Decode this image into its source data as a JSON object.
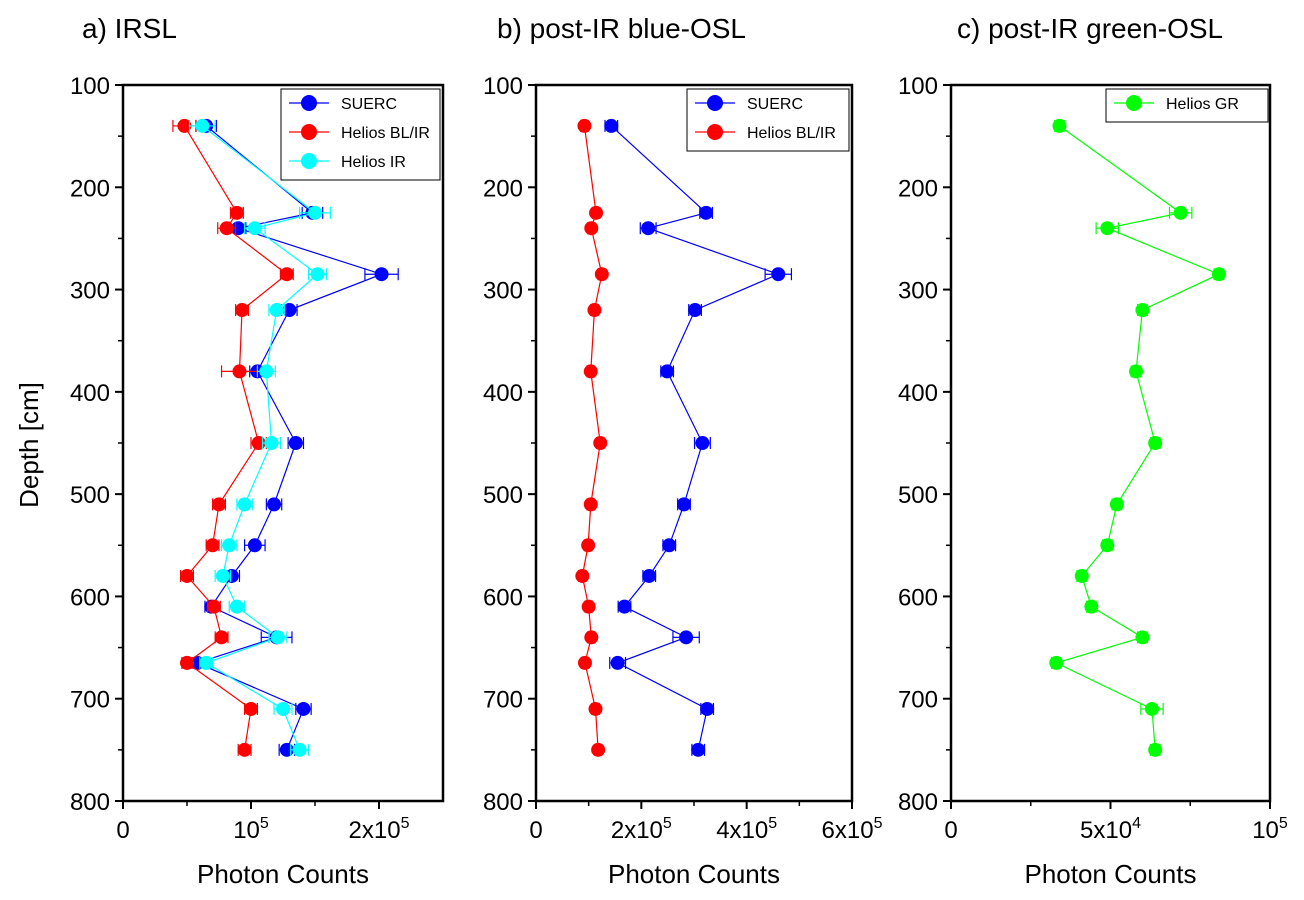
{
  "panels_common": {
    "ylabel": "Depth [cm]",
    "xlabel": "Photon Counts"
  },
  "chart_data": [
    {
      "type": "line",
      "title": "a) IRSL",
      "xlabel": "Photon Counts",
      "ylabel": "Depth [cm]",
      "ylim": [
        800,
        100
      ],
      "y_reversed": true,
      "xlim": [
        0,
        250000
      ],
      "x_ticks": [
        {
          "value": 0,
          "label": "0"
        },
        {
          "value": 100000,
          "label": "10^5"
        },
        {
          "value": 200000,
          "label": "2x10^5"
        }
      ],
      "y_ticks": [
        100,
        200,
        300,
        400,
        500,
        600,
        700,
        800
      ],
      "grid": false,
      "legend_position": "top-right",
      "series": [
        {
          "name": "SUERC",
          "color": "#0000ff",
          "depth": [
            140,
            225,
            240,
            285,
            320,
            380,
            450,
            510,
            550,
            580,
            610,
            640,
            665,
            710,
            750
          ],
          "values": [
            65000,
            148000,
            90000,
            202000,
            130000,
            105000,
            135000,
            118000,
            103000,
            85000,
            69000,
            120000,
            58000,
            141000,
            128000
          ],
          "errors": [
            8000,
            8000,
            6000,
            13000,
            6000,
            6000,
            6000,
            6000,
            8000,
            6000,
            5000,
            12000,
            8000,
            6000,
            6000
          ]
        },
        {
          "name": "Helios BL/IR",
          "color": "#ff0000",
          "depth": [
            140,
            225,
            240,
            285,
            320,
            380,
            450,
            510,
            550,
            580,
            610,
            640,
            665,
            710,
            750
          ],
          "values": [
            48000,
            89000,
            81000,
            128000,
            93000,
            91000,
            106000,
            75000,
            70000,
            50000,
            71000,
            77000,
            50000,
            100000,
            95000
          ],
          "errors": [
            9000,
            5000,
            7000,
            5000,
            5000,
            14000,
            6000,
            5000,
            5000,
            5000,
            5000,
            5000,
            4000,
            5000,
            5000
          ]
        },
        {
          "name": "Helios IR",
          "color": "#00ffff",
          "depth": [
            140,
            225,
            240,
            285,
            320,
            380,
            450,
            510,
            550,
            580,
            610,
            640,
            665,
            710,
            750
          ],
          "values": [
            62000,
            150000,
            103000,
            152000,
            120000,
            112000,
            116000,
            95000,
            83000,
            78000,
            89000,
            121000,
            65000,
            125000,
            138000
          ],
          "errors": [
            10000,
            12000,
            8000,
            7000,
            6000,
            7000,
            7000,
            6000,
            6000,
            6000,
            6000,
            7000,
            5000,
            7000,
            7000
          ]
        }
      ]
    },
    {
      "type": "line",
      "title": "b) post-IR blue-OSL",
      "xlabel": "Photon Counts",
      "ylabel": "",
      "ylim": [
        800,
        100
      ],
      "y_reversed": true,
      "xlim": [
        0,
        600000
      ],
      "x_ticks": [
        {
          "value": 0,
          "label": "0"
        },
        {
          "value": 200000,
          "label": "2x10^5"
        },
        {
          "value": 400000,
          "label": "4x10^5"
        },
        {
          "value": 600000,
          "label": "6x10^5"
        }
      ],
      "y_ticks": [
        100,
        200,
        300,
        400,
        500,
        600,
        700,
        800
      ],
      "grid": false,
      "legend_position": "top-right",
      "series": [
        {
          "name": "SUERC",
          "color": "#0000ff",
          "depth": [
            140,
            225,
            240,
            285,
            320,
            380,
            450,
            510,
            550,
            580,
            610,
            640,
            665,
            710,
            750
          ],
          "values": [
            143000,
            323000,
            213000,
            460000,
            302000,
            249000,
            316000,
            281000,
            253000,
            215000,
            168000,
            285000,
            155000,
            325000,
            308000
          ],
          "errors": [
            12000,
            12000,
            15000,
            25000,
            12000,
            12000,
            15000,
            12000,
            12000,
            12000,
            12000,
            25000,
            15000,
            12000,
            12000
          ]
        },
        {
          "name": "Helios BL/IR",
          "color": "#ff0000",
          "depth": [
            140,
            225,
            240,
            285,
            320,
            380,
            450,
            510,
            550,
            580,
            610,
            640,
            665,
            710,
            750
          ],
          "values": [
            92000,
            114000,
            105000,
            125000,
            111000,
            104000,
            122000,
            104000,
            99000,
            88000,
            100000,
            105000,
            93000,
            113000,
            118000
          ],
          "errors": [
            7000,
            7000,
            7000,
            7000,
            7000,
            7000,
            7000,
            7000,
            7000,
            7000,
            7000,
            7000,
            7000,
            7000,
            7000
          ]
        }
      ]
    },
    {
      "type": "line",
      "title": "c) post-IR green-OSL",
      "xlabel": "Photon Counts",
      "ylabel": "",
      "ylim": [
        800,
        100
      ],
      "y_reversed": true,
      "xlim": [
        0,
        100000
      ],
      "x_ticks": [
        {
          "value": 0,
          "label": "0"
        },
        {
          "value": 50000,
          "label": "5x10^4"
        },
        {
          "value": 100000,
          "label": "10^5"
        }
      ],
      "y_ticks": [
        100,
        200,
        300,
        400,
        500,
        600,
        700,
        800
      ],
      "grid": false,
      "legend_position": "top-right",
      "series": [
        {
          "name": "Helios GR",
          "color": "#00ff00",
          "depth": [
            140,
            225,
            240,
            285,
            320,
            380,
            450,
            510,
            550,
            580,
            610,
            640,
            665,
            710,
            750
          ],
          "values": [
            34000,
            72000,
            49000,
            84000,
            60000,
            58000,
            64000,
            52000,
            49000,
            41000,
            44000,
            60000,
            33000,
            63000,
            64000
          ],
          "errors": [
            1500,
            3500,
            3500,
            1500,
            1500,
            1500,
            1500,
            1500,
            1500,
            1500,
            1500,
            1500,
            1500,
            3500,
            1500
          ]
        }
      ]
    }
  ]
}
